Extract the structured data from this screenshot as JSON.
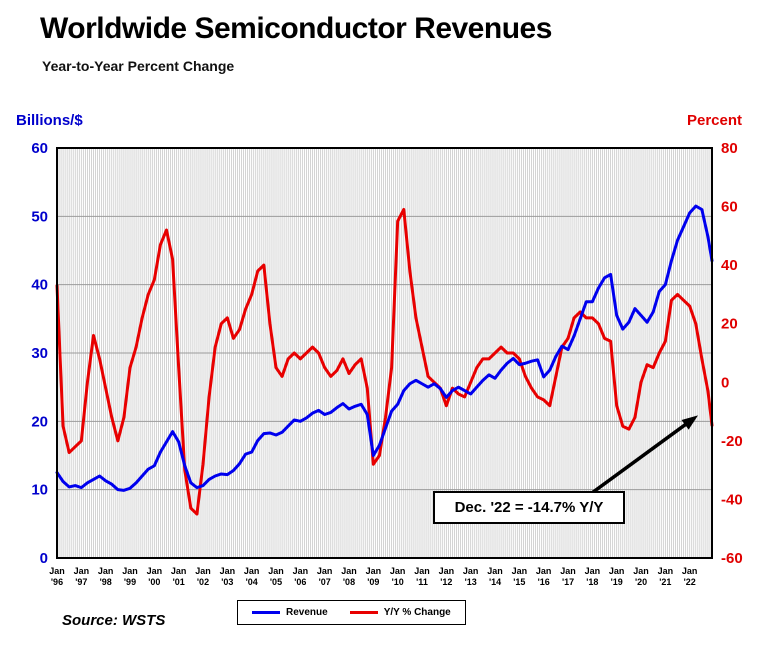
{
  "title": "Worldwide Semiconductor Revenues",
  "subtitle": "Year-to-Year Percent Change",
  "left_axis": {
    "label": "Billions/$",
    "color": "#0000cc",
    "min": 0,
    "max": 60,
    "ticks": [
      0,
      10,
      20,
      30,
      40,
      50,
      60
    ]
  },
  "right_axis": {
    "label": "Percent",
    "color": "#e00000",
    "min": -60,
    "max": 80,
    "ticks": [
      -60,
      -40,
      -20,
      0,
      20,
      40,
      60,
      80
    ]
  },
  "x_axis": {
    "month_label": "Jan",
    "years": [
      "'96",
      "'97",
      "'98",
      "'99",
      "'00",
      "'01",
      "'02",
      "'03",
      "'04",
      "'05",
      "'06",
      "'07",
      "'08",
      "'09",
      "'10",
      "'11",
      "'12",
      "'13",
      "'14",
      "'15",
      "'16",
      "'17",
      "'18",
      "'19",
      "'20",
      "'21",
      "'22"
    ]
  },
  "annotation": {
    "text": "Dec. '22 = -14.7% Y/Y"
  },
  "legend": {
    "items": [
      {
        "label": "Revenue",
        "color": "#0000ee"
      },
      {
        "label": "Y/Y % Change",
        "color": "#e80000"
      }
    ]
  },
  "source": "Source: WSTS",
  "chart_data": {
    "type": "line",
    "dual_axis": true,
    "title": "Worldwide Semiconductor Revenues",
    "subtitle": "Year-to-Year Percent Change",
    "x_start": "1996-01",
    "x_end": "2022-12",
    "sampling": "quarterly estimates (Jan, Apr, Jul, Oct of each year) read from the monthly curves; the final array element is Dec 2022",
    "x_years": [
      "'96",
      "'97",
      "'98",
      "'99",
      "'00",
      "'01",
      "'02",
      "'03",
      "'04",
      "'05",
      "'06",
      "'07",
      "'08",
      "'09",
      "'10",
      "'11",
      "'12",
      "'13",
      "'14",
      "'15",
      "'16",
      "'17",
      "'18",
      "'19",
      "'20",
      "'21",
      "'22"
    ],
    "left_ylim": [
      0,
      60
    ],
    "right_ylim": [
      -60,
      80
    ],
    "grid": "dense monthly vertical gridlines; horizontal gridlines every 10 units of the left axis",
    "legend_position": "bottom center",
    "annotation": "Dec. '22 = -14.7% Y/Y",
    "series": [
      {
        "name": "Revenue",
        "units": "Billions/$",
        "axis": "left",
        "color": "#0000ee",
        "values": [
          12.5,
          11.2,
          10.4,
          10.6,
          10.3,
          11.0,
          11.5,
          12.0,
          11.3,
          10.8,
          10.0,
          9.9,
          10.2,
          11.0,
          12.0,
          13.0,
          13.5,
          15.5,
          17.0,
          18.5,
          17.0,
          13.5,
          11.0,
          10.3,
          10.6,
          11.5,
          12.0,
          12.3,
          12.2,
          12.8,
          13.8,
          15.2,
          15.5,
          17.2,
          18.2,
          18.3,
          18.0,
          18.4,
          19.3,
          20.2,
          20.0,
          20.5,
          21.2,
          21.6,
          21.0,
          21.3,
          22.0,
          22.6,
          21.8,
          22.2,
          22.5,
          21.0,
          15.0,
          16.5,
          19.0,
          21.5,
          22.5,
          24.5,
          25.5,
          26.0,
          25.5,
          25.0,
          25.5,
          24.8,
          23.5,
          24.5,
          25.0,
          24.5,
          24.0,
          25.0,
          26.0,
          26.8,
          26.3,
          27.5,
          28.5,
          29.2,
          28.3,
          28.5,
          28.8,
          29.0,
          26.5,
          27.5,
          29.5,
          31.0,
          30.5,
          32.5,
          35.0,
          37.5,
          37.5,
          39.5,
          41.0,
          41.5,
          35.5,
          33.5,
          34.5,
          36.5,
          35.5,
          34.5,
          36.0,
          39.0,
          40.0,
          43.5,
          46.5,
          48.5,
          50.5,
          51.5,
          51.0,
          47.0,
          43.5
        ]
      },
      {
        "name": "Y/Y % Change",
        "units": "percent",
        "axis": "right",
        "color": "#e80000",
        "values": [
          33,
          -15,
          -24,
          -22,
          -20,
          0,
          16,
          8,
          -2,
          -12,
          -20,
          -12,
          5,
          12,
          22,
          30,
          35,
          47,
          52,
          42,
          5,
          -30,
          -43,
          -45,
          -28,
          -5,
          12,
          20,
          22,
          15,
          18,
          25,
          30,
          38,
          40,
          20,
          5,
          2,
          8,
          10,
          8,
          10,
          12,
          10,
          5,
          2,
          4,
          8,
          3,
          6,
          8,
          -2,
          -28,
          -25,
          -12,
          5,
          55,
          59,
          38,
          22,
          12,
          2,
          0,
          -2,
          -8,
          -2,
          -4,
          -5,
          0,
          5,
          8,
          8,
          10,
          12,
          10,
          10,
          8,
          2,
          -2,
          -5,
          -6,
          -8,
          2,
          12,
          15,
          22,
          24,
          22,
          22,
          20,
          15,
          14,
          -8,
          -15,
          -16,
          -12,
          0,
          6,
          5,
          10,
          14,
          28,
          30,
          28,
          26,
          20,
          8,
          -3,
          -14.7
        ]
      }
    ]
  }
}
